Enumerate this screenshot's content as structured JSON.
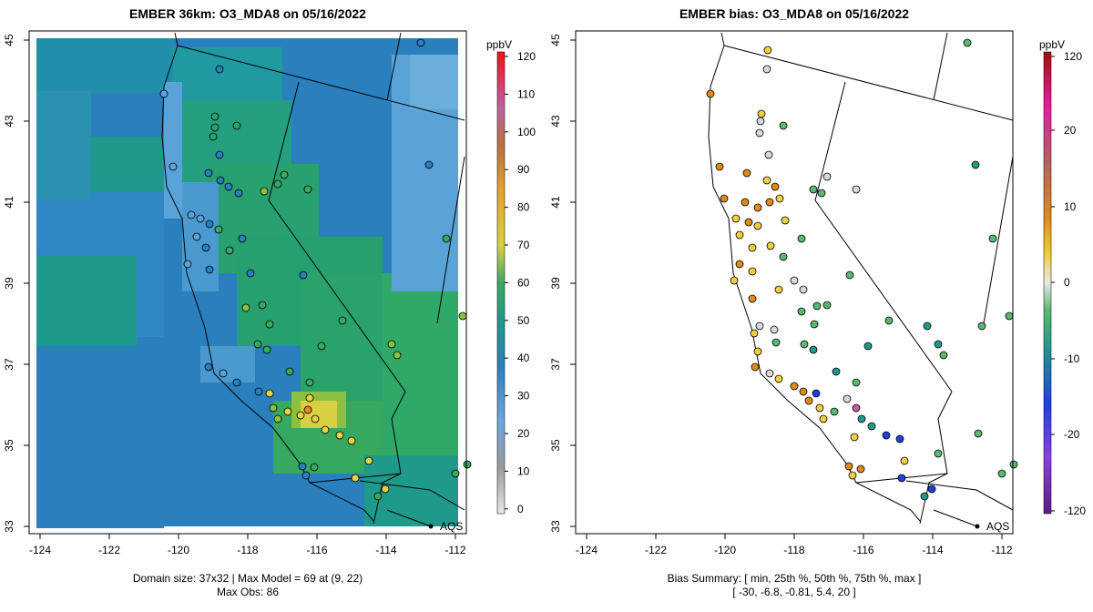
{
  "left_panel": {
    "title": "EMBER 36km: O3_MDA8 on 05/16/2022",
    "colorbar_unit": "ppbV",
    "colorbar_ticks": [
      "120",
      "110",
      "100",
      "90",
      "80",
      "70",
      "60",
      "50",
      "40",
      "30",
      "20",
      "10",
      "0"
    ],
    "footer_line1": "Domain size: 37x32 | Max Model = 69 at (9, 22)",
    "footer_line2": "Max Obs: 86",
    "legend_label": "AQS"
  },
  "right_panel": {
    "title": "EMBER bias: O3_MDA8 on 05/16/2022",
    "colorbar_unit": "ppbV",
    "colorbar_ticks": [
      "120",
      "20",
      "10",
      "0",
      "-10",
      "-20",
      "-120"
    ],
    "footer_line1": "Bias Summary: [ min, 25th %, 50th %, 75th %, max ]",
    "footer_line2": "[ -30,   -6.8,   -0.81,   5.4,   20 ]",
    "legend_label": "AQS"
  },
  "axes": {
    "x_ticks": [
      "-124",
      "-122",
      "-120",
      "-118",
      "-116",
      "-114",
      "-112"
    ],
    "y_ticks": [
      "33",
      "35",
      "37",
      "39",
      "41",
      "43",
      "45"
    ]
  },
  "colors": {
    "model_dark_blue": "#2a7fbd",
    "model_light_blue": "#5aa3d8",
    "model_teal": "#1f9a8a",
    "model_green": "#3aa860",
    "model_yellow": "#e0d440",
    "bias_orange": "#e08a1a",
    "bias_yellow": "#f0d040",
    "bias_gray": "#d8d8d8",
    "bias_green": "#5ab870",
    "bias_blue": "#2040e0"
  },
  "chart_data": {
    "type": "map",
    "region_lon": [
      -124,
      -112
    ],
    "region_lat": [
      33,
      45
    ],
    "model_grid": "37x32",
    "max_model": 69,
    "max_obs": 86,
    "bias_summary": {
      "min": -30,
      "p25": -6.8,
      "p50": -0.81,
      "p75": 5.4,
      "max": 20
    }
  }
}
